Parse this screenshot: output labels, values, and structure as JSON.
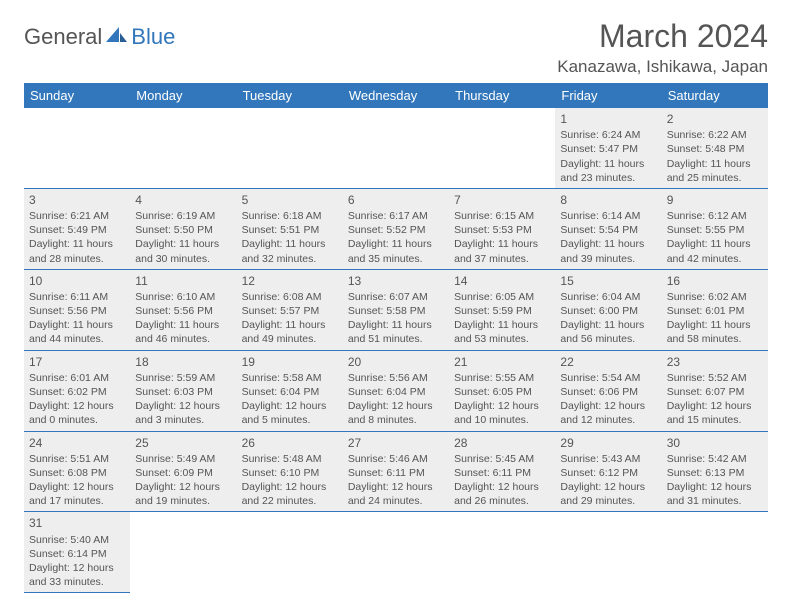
{
  "logo": {
    "text1": "General",
    "text2": "Blue"
  },
  "title": "March 2024",
  "location": "Kanazawa, Ishikawa, Japan",
  "colors": {
    "header_bg": "#3277bc",
    "header_text": "#ffffff",
    "cell_bg": "#eeeeee",
    "text": "#555555",
    "rule": "#3277bc"
  },
  "daynames": [
    "Sunday",
    "Monday",
    "Tuesday",
    "Wednesday",
    "Thursday",
    "Friday",
    "Saturday"
  ],
  "first_weekday": 5,
  "days": [
    {
      "n": 1,
      "sunrise": "6:24 AM",
      "sunset": "5:47 PM",
      "daylight": "11 hours and 23 minutes."
    },
    {
      "n": 2,
      "sunrise": "6:22 AM",
      "sunset": "5:48 PM",
      "daylight": "11 hours and 25 minutes."
    },
    {
      "n": 3,
      "sunrise": "6:21 AM",
      "sunset": "5:49 PM",
      "daylight": "11 hours and 28 minutes."
    },
    {
      "n": 4,
      "sunrise": "6:19 AM",
      "sunset": "5:50 PM",
      "daylight": "11 hours and 30 minutes."
    },
    {
      "n": 5,
      "sunrise": "6:18 AM",
      "sunset": "5:51 PM",
      "daylight": "11 hours and 32 minutes."
    },
    {
      "n": 6,
      "sunrise": "6:17 AM",
      "sunset": "5:52 PM",
      "daylight": "11 hours and 35 minutes."
    },
    {
      "n": 7,
      "sunrise": "6:15 AM",
      "sunset": "5:53 PM",
      "daylight": "11 hours and 37 minutes."
    },
    {
      "n": 8,
      "sunrise": "6:14 AM",
      "sunset": "5:54 PM",
      "daylight": "11 hours and 39 minutes."
    },
    {
      "n": 9,
      "sunrise": "6:12 AM",
      "sunset": "5:55 PM",
      "daylight": "11 hours and 42 minutes."
    },
    {
      "n": 10,
      "sunrise": "6:11 AM",
      "sunset": "5:56 PM",
      "daylight": "11 hours and 44 minutes."
    },
    {
      "n": 11,
      "sunrise": "6:10 AM",
      "sunset": "5:56 PM",
      "daylight": "11 hours and 46 minutes."
    },
    {
      "n": 12,
      "sunrise": "6:08 AM",
      "sunset": "5:57 PM",
      "daylight": "11 hours and 49 minutes."
    },
    {
      "n": 13,
      "sunrise": "6:07 AM",
      "sunset": "5:58 PM",
      "daylight": "11 hours and 51 minutes."
    },
    {
      "n": 14,
      "sunrise": "6:05 AM",
      "sunset": "5:59 PM",
      "daylight": "11 hours and 53 minutes."
    },
    {
      "n": 15,
      "sunrise": "6:04 AM",
      "sunset": "6:00 PM",
      "daylight": "11 hours and 56 minutes."
    },
    {
      "n": 16,
      "sunrise": "6:02 AM",
      "sunset": "6:01 PM",
      "daylight": "11 hours and 58 minutes."
    },
    {
      "n": 17,
      "sunrise": "6:01 AM",
      "sunset": "6:02 PM",
      "daylight": "12 hours and 0 minutes."
    },
    {
      "n": 18,
      "sunrise": "5:59 AM",
      "sunset": "6:03 PM",
      "daylight": "12 hours and 3 minutes."
    },
    {
      "n": 19,
      "sunrise": "5:58 AM",
      "sunset": "6:04 PM",
      "daylight": "12 hours and 5 minutes."
    },
    {
      "n": 20,
      "sunrise": "5:56 AM",
      "sunset": "6:04 PM",
      "daylight": "12 hours and 8 minutes."
    },
    {
      "n": 21,
      "sunrise": "5:55 AM",
      "sunset": "6:05 PM",
      "daylight": "12 hours and 10 minutes."
    },
    {
      "n": 22,
      "sunrise": "5:54 AM",
      "sunset": "6:06 PM",
      "daylight": "12 hours and 12 minutes."
    },
    {
      "n": 23,
      "sunrise": "5:52 AM",
      "sunset": "6:07 PM",
      "daylight": "12 hours and 15 minutes."
    },
    {
      "n": 24,
      "sunrise": "5:51 AM",
      "sunset": "6:08 PM",
      "daylight": "12 hours and 17 minutes."
    },
    {
      "n": 25,
      "sunrise": "5:49 AM",
      "sunset": "6:09 PM",
      "daylight": "12 hours and 19 minutes."
    },
    {
      "n": 26,
      "sunrise": "5:48 AM",
      "sunset": "6:10 PM",
      "daylight": "12 hours and 22 minutes."
    },
    {
      "n": 27,
      "sunrise": "5:46 AM",
      "sunset": "6:11 PM",
      "daylight": "12 hours and 24 minutes."
    },
    {
      "n": 28,
      "sunrise": "5:45 AM",
      "sunset": "6:11 PM",
      "daylight": "12 hours and 26 minutes."
    },
    {
      "n": 29,
      "sunrise": "5:43 AM",
      "sunset": "6:12 PM",
      "daylight": "12 hours and 29 minutes."
    },
    {
      "n": 30,
      "sunrise": "5:42 AM",
      "sunset": "6:13 PM",
      "daylight": "12 hours and 31 minutes."
    },
    {
      "n": 31,
      "sunrise": "5:40 AM",
      "sunset": "6:14 PM",
      "daylight": "12 hours and 33 minutes."
    }
  ],
  "labels": {
    "sunrise": "Sunrise:",
    "sunset": "Sunset:",
    "daylight": "Daylight:"
  }
}
